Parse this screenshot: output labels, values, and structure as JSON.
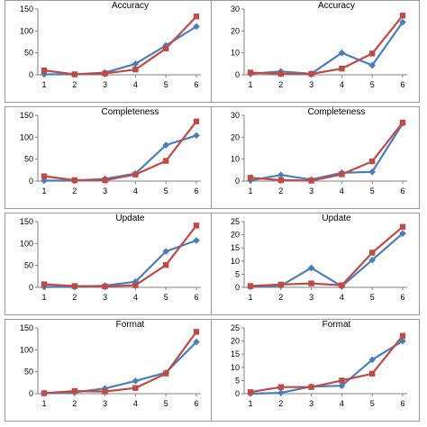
{
  "colors": {
    "series_a": "#4a7ebb",
    "series_b": "#be4b48"
  },
  "chart_data": [
    {
      "type": "line",
      "title": "Accuracy",
      "categories": [
        "1",
        "2",
        "3",
        "4",
        "5",
        "6"
      ],
      "ylim": [
        0,
        150
      ],
      "yticks": [
        "0",
        "50",
        "100",
        "150"
      ],
      "series": [
        {
          "marker": "diamond-icon",
          "values": [
            1,
            1,
            5,
            25,
            67,
            110
          ]
        },
        {
          "marker": "square-icon",
          "values": [
            10,
            1,
            3,
            12,
            60,
            133
          ]
        }
      ]
    },
    {
      "type": "line",
      "title": "Accuracy",
      "categories": [
        "1",
        "2",
        "3",
        "4",
        "5",
        "6"
      ],
      "ylim": [
        0,
        30
      ],
      "yticks": [
        "0",
        "10",
        "20",
        "30"
      ],
      "series": [
        {
          "marker": "diamond-icon",
          "values": [
            0.5,
            1.5,
            0.5,
            10,
            4.3,
            24
          ]
        },
        {
          "marker": "square-icon",
          "values": [
            1,
            0.5,
            0.4,
            2.8,
            9.7,
            27
          ]
        }
      ]
    },
    {
      "type": "line",
      "title": "Completeness",
      "categories": [
        "1",
        "2",
        "3",
        "4",
        "5",
        "6"
      ],
      "ylim": [
        0,
        150
      ],
      "yticks": [
        "0",
        "50",
        "100",
        "150"
      ],
      "series": [
        {
          "marker": "diamond-icon",
          "values": [
            1,
            1,
            5,
            17,
            82,
            104
          ]
        },
        {
          "marker": "square-icon",
          "values": [
            11,
            2,
            2,
            15,
            46,
            136
          ]
        }
      ]
    },
    {
      "type": "line",
      "title": "Completeness",
      "categories": [
        "1",
        "2",
        "3",
        "4",
        "5",
        "6"
      ],
      "ylim": [
        0,
        30
      ],
      "yticks": [
        "0",
        "10",
        "20",
        "30"
      ],
      "series": [
        {
          "marker": "diamond-icon",
          "values": [
            0.3,
            2.8,
            0.7,
            3.8,
            4.2,
            26.3
          ]
        },
        {
          "marker": "square-icon",
          "values": [
            1.5,
            0.4,
            0.2,
            3.1,
            9,
            26.7
          ]
        }
      ]
    },
    {
      "type": "line",
      "title": "Update",
      "categories": [
        "1",
        "2",
        "3",
        "4",
        "5",
        "6"
      ],
      "ylim": [
        0,
        150
      ],
      "yticks": [
        "0",
        "50",
        "100",
        "150"
      ],
      "series": [
        {
          "marker": "diamond-icon",
          "values": [
            1,
            1,
            4,
            13,
            82,
            107
          ]
        },
        {
          "marker": "square-icon",
          "values": [
            7,
            3,
            2,
            5,
            51,
            141
          ]
        }
      ]
    },
    {
      "type": "line",
      "title": "Update",
      "categories": [
        "1",
        "2",
        "3",
        "4",
        "5",
        "6"
      ],
      "ylim": [
        0,
        25
      ],
      "yticks": [
        "0",
        "5",
        "10",
        "15",
        "20",
        "25"
      ],
      "series": [
        {
          "marker": "diamond-icon",
          "values": [
            0.2,
            0.6,
            7.4,
            0.4,
            10.4,
            20.5
          ]
        },
        {
          "marker": "square-icon",
          "values": [
            0.5,
            1.1,
            1.5,
            0.8,
            13.2,
            23
          ]
        }
      ]
    },
    {
      "type": "line",
      "title": "Format",
      "categories": [
        "1",
        "2",
        "3",
        "4",
        "5",
        "6"
      ],
      "ylim": [
        0,
        150
      ],
      "yticks": [
        "0",
        "50",
        "100",
        "150"
      ],
      "series": [
        {
          "marker": "diamond-icon",
          "values": [
            1,
            3,
            12,
            29,
            48,
            118
          ]
        },
        {
          "marker": "square-icon",
          "values": [
            1,
            6,
            5,
            13,
            46,
            141
          ]
        }
      ]
    },
    {
      "type": "line",
      "title": "Format",
      "categories": [
        "1",
        "2",
        "3",
        "4",
        "5",
        "6"
      ],
      "ylim": [
        0,
        25
      ],
      "yticks": [
        "0",
        "5",
        "10",
        "15",
        "20",
        "25"
      ],
      "series": [
        {
          "marker": "diamond-icon",
          "values": [
            0,
            0.3,
            2.7,
            3,
            12.9,
            20
          ]
        },
        {
          "marker": "square-icon",
          "values": [
            0.6,
            2.5,
            2.5,
            5,
            7.6,
            22
          ]
        }
      ]
    }
  ]
}
